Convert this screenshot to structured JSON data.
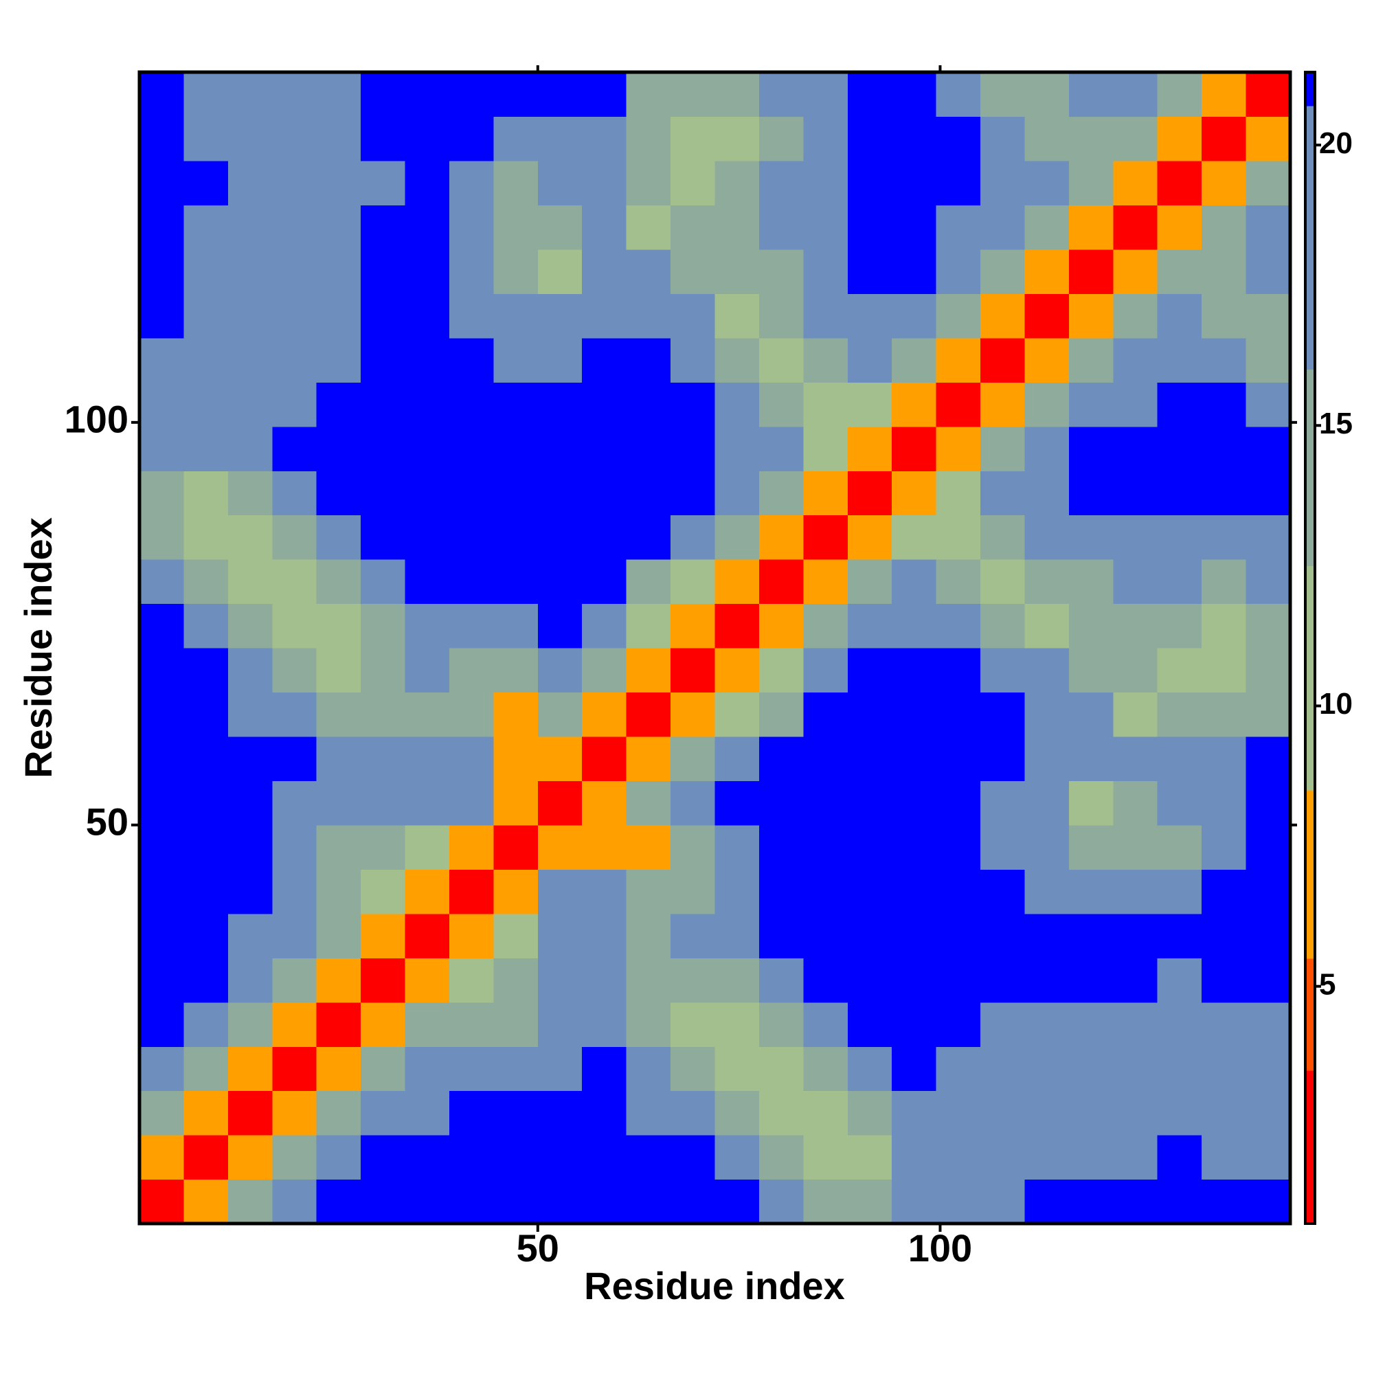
{
  "chart_data": {
    "type": "heatmap",
    "xlabel": "Residue index",
    "ylabel": "Residue index",
    "x": [
      3.25,
      8.75,
      14.25,
      19.75,
      25.25,
      30.75,
      36.25,
      41.75,
      47.25,
      52.75,
      58.25,
      63.75,
      69.25,
      74.75,
      80.25,
      85.75,
      91.25,
      96.75,
      102.25,
      107.75,
      113.25,
      118.75,
      124.25,
      129.75,
      135.25,
      140.75
    ],
    "y": [
      3.25,
      8.75,
      14.25,
      19.75,
      25.25,
      30.75,
      36.25,
      41.75,
      47.25,
      52.75,
      58.25,
      63.75,
      69.25,
      74.75,
      80.25,
      85.75,
      91.25,
      96.75,
      102.25,
      107.75,
      113.25,
      118.75,
      124.25,
      129.75,
      135.25,
      140.75
    ],
    "z": [
      [
        2,
        8,
        14,
        19,
        21,
        21,
        21,
        21,
        21,
        21,
        21,
        21,
        21,
        21,
        18,
        14,
        13,
        16,
        19,
        20,
        21,
        21,
        21,
        21,
        21,
        21
      ],
      [
        8,
        2,
        8,
        14,
        19,
        21,
        21,
        21,
        21,
        21,
        21,
        21,
        21,
        17,
        13,
        10,
        12,
        18,
        17,
        18,
        18,
        19,
        20,
        21,
        19,
        19
      ],
      [
        14,
        8,
        2,
        8,
        14,
        19,
        20,
        21,
        21,
        21,
        21,
        19,
        16,
        13,
        10,
        11,
        15,
        20,
        18,
        17,
        18,
        17,
        18,
        19,
        18,
        18
      ],
      [
        19,
        14,
        8,
        2,
        8,
        14,
        18,
        16,
        17,
        20,
        21,
        16,
        13,
        11,
        12,
        14,
        19,
        21,
        19,
        18,
        17,
        18,
        17,
        18,
        17,
        18
      ],
      [
        21,
        19,
        14,
        8,
        2,
        8,
        14,
        14,
        15,
        17,
        19,
        14,
        11,
        11,
        15,
        19,
        21,
        21,
        21,
        20,
        19,
        19,
        19,
        18,
        18,
        19
      ],
      [
        21,
        21,
        19,
        14,
        8,
        2,
        8,
        12,
        14,
        16,
        16,
        13,
        13,
        15,
        19,
        21,
        21,
        21,
        21,
        21,
        21,
        21,
        21,
        20,
        21,
        21
      ],
      [
        21,
        21,
        20,
        18,
        14,
        8,
        2,
        8,
        10,
        18,
        17,
        15,
        17,
        19,
        21,
        21,
        21,
        21,
        21,
        21,
        21,
        21,
        21,
        21,
        21,
        21
      ],
      [
        21,
        21,
        21,
        16,
        14,
        12,
        8,
        2,
        8,
        16,
        16,
        14,
        15,
        18,
        21,
        21,
        21,
        21,
        21,
        21,
        19,
        17,
        16,
        17,
        21,
        21
      ],
      [
        21,
        21,
        21,
        17,
        15,
        14,
        10,
        8,
        2,
        8,
        7,
        7,
        15,
        17,
        21,
        21,
        21,
        21,
        21,
        20,
        17,
        15,
        14,
        15,
        18,
        21
      ],
      [
        21,
        21,
        21,
        20,
        17,
        16,
        18,
        16,
        8,
        2,
        6,
        14,
        19,
        21,
        21,
        21,
        21,
        21,
        21,
        19,
        16,
        12,
        13,
        16,
        20,
        21
      ],
      [
        21,
        21,
        21,
        21,
        19,
        16,
        17,
        16,
        7,
        6,
        2,
        8,
        13,
        17,
        21,
        21,
        21,
        21,
        21,
        21,
        19,
        18,
        17,
        18,
        19,
        21
      ],
      [
        21,
        21,
        19,
        16,
        14,
        13,
        15,
        14,
        7,
        14,
        8,
        2,
        8,
        11,
        15,
        21,
        21,
        21,
        21,
        21,
        20,
        16,
        12,
        13,
        14,
        15
      ],
      [
        21,
        21,
        16,
        13,
        11,
        13,
        17,
        15,
        15,
        19,
        13,
        8,
        2,
        8,
        12,
        19,
        21,
        21,
        21,
        18,
        16,
        14,
        14,
        11,
        12,
        13
      ],
      [
        21,
        17,
        13,
        11,
        11,
        15,
        19,
        18,
        17,
        21,
        17,
        11,
        8,
        2,
        8,
        14,
        19,
        19,
        17,
        14,
        12,
        13,
        15,
        14,
        12,
        14
      ],
      [
        18,
        13,
        10,
        12,
        15,
        19,
        21,
        21,
        21,
        21,
        21,
        15,
        12,
        8,
        2,
        8,
        14,
        18,
        13,
        11,
        13,
        15,
        17,
        16,
        15,
        16
      ],
      [
        14,
        10,
        11,
        14,
        19,
        21,
        21,
        21,
        21,
        21,
        21,
        21,
        19,
        14,
        8,
        2,
        8,
        12,
        10,
        13,
        16,
        19,
        20,
        19,
        17,
        19
      ],
      [
        13,
        12,
        15,
        19,
        21,
        21,
        21,
        21,
        21,
        21,
        21,
        21,
        21,
        19,
        14,
        8,
        2,
        8,
        12,
        17,
        20,
        21,
        21,
        21,
        21,
        21
      ],
      [
        16,
        18,
        20,
        21,
        21,
        21,
        21,
        21,
        21,
        21,
        21,
        21,
        21,
        19,
        18,
        12,
        8,
        2,
        8,
        14,
        19,
        21,
        21,
        21,
        21,
        21
      ],
      [
        19,
        17,
        18,
        19,
        21,
        21,
        21,
        21,
        21,
        21,
        21,
        21,
        21,
        17,
        13,
        10,
        12,
        8,
        2,
        8,
        14,
        19,
        19,
        21,
        21,
        20
      ],
      [
        20,
        18,
        17,
        18,
        20,
        21,
        21,
        21,
        20,
        19,
        21,
        21,
        18,
        14,
        11,
        13,
        17,
        14,
        8,
        2,
        8,
        14,
        18,
        19,
        16,
        14
      ],
      [
        21,
        18,
        18,
        17,
        19,
        21,
        21,
        19,
        17,
        16,
        19,
        20,
        16,
        12,
        13,
        16,
        20,
        19,
        14,
        8,
        2,
        8,
        14,
        17,
        14,
        15
      ],
      [
        21,
        19,
        17,
        18,
        19,
        21,
        21,
        17,
        15,
        12,
        18,
        16,
        14,
        13,
        15,
        19,
        21,
        21,
        19,
        14,
        8,
        2,
        8,
        14,
        13,
        16
      ],
      [
        21,
        20,
        18,
        17,
        19,
        21,
        21,
        16,
        14,
        13,
        17,
        12,
        14,
        15,
        17,
        20,
        21,
        21,
        19,
        18,
        14,
        8,
        2,
        8,
        14,
        17
      ],
      [
        21,
        21,
        19,
        18,
        18,
        20,
        21,
        17,
        15,
        16,
        18,
        13,
        11,
        14,
        16,
        19,
        21,
        21,
        21,
        19,
        17,
        14,
        8,
        2,
        8,
        14
      ],
      [
        21,
        19,
        18,
        17,
        18,
        21,
        21,
        21,
        18,
        20,
        19,
        14,
        12,
        12,
        15,
        17,
        21,
        21,
        21,
        16,
        14,
        13,
        14,
        8,
        2,
        6
      ],
      [
        21,
        19,
        18,
        18,
        19,
        21,
        21,
        21,
        21,
        21,
        21,
        15,
        13,
        14,
        16,
        19,
        21,
        21,
        20,
        14,
        15,
        16,
        17,
        14,
        6,
        2
      ]
    ],
    "xlim": [
      0.5,
      143.5
    ],
    "ylim": [
      0.5,
      143.5
    ],
    "xticks": [
      50,
      100
    ],
    "yticks": [
      50,
      100
    ],
    "zlim": [
      0.77,
      21.3
    ],
    "colorbar_ticks": [
      5,
      10,
      15,
      20
    ],
    "colorscale": [
      [
        0.77,
        "#ff0000"
      ],
      [
        3.5,
        "#ff5000"
      ],
      [
        5.5,
        "#ffa000"
      ],
      [
        8.5,
        "#a4bf8e"
      ],
      [
        12.5,
        "#8fab9b"
      ],
      [
        16,
        "#6e8fbd"
      ],
      [
        20.7,
        "#0000ff"
      ]
    ]
  }
}
